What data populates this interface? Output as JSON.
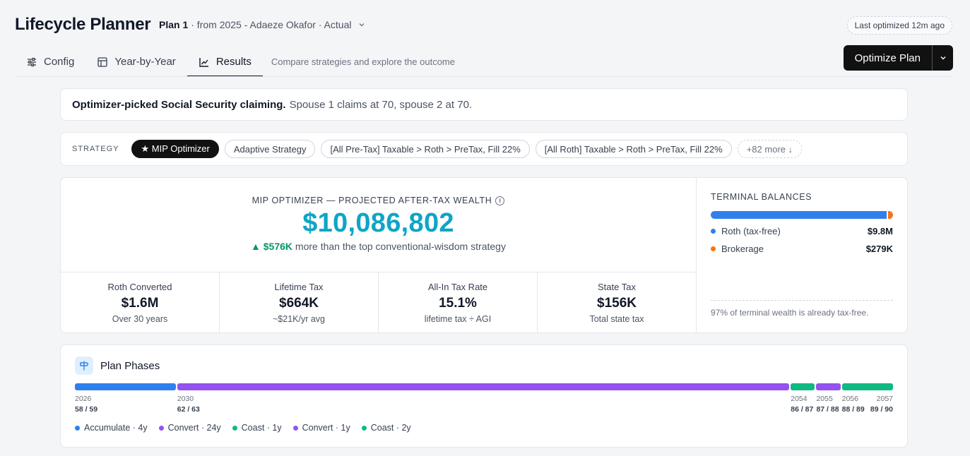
{
  "header": {
    "app_title": "Lifecycle Planner",
    "plan_name": "Plan 1",
    "plan_detail": "· from 2025 - Adaeze Okafor · Actual",
    "last_optimized": "Last optimized 12m ago"
  },
  "tabs": [
    {
      "label": "Config",
      "icon": "sliders-icon"
    },
    {
      "label": "Year-by-Year",
      "icon": "table-icon"
    },
    {
      "label": "Results",
      "icon": "line-chart-icon",
      "active": true
    }
  ],
  "tab_description": "Compare strategies and explore the outcome",
  "optimize_button": {
    "label": "Optimize Plan"
  },
  "notice": {
    "bold": "Optimizer-picked Social Security claiming.",
    "text": "Spouse 1 claims at 70, spouse 2 at 70."
  },
  "strategy": {
    "label": "STRATEGY",
    "options": [
      "★ MIP Optimizer",
      "Adaptive Strategy",
      "[All Pre-Tax] Taxable > Roth > PreTax, Fill 22%",
      "[All Roth] Taxable > Roth > PreTax, Fill 22%"
    ],
    "more": "+82 more ↓"
  },
  "wealth": {
    "label": "MIP OPTIMIZER — PROJECTED AFTER-TAX WEALTH",
    "value": "$10,086,802",
    "delta_value": "▲ $576K",
    "delta_text": "more than the top conventional-wisdom strategy"
  },
  "stats": [
    {
      "label": "Roth Converted",
      "value": "$1.6M",
      "sub": "Over 30 years"
    },
    {
      "label": "Lifetime Tax",
      "value": "$664K",
      "sub": "~$21K/yr avg"
    },
    {
      "label": "All-In Tax Rate",
      "value": "15.1%",
      "sub": "lifetime tax ÷ AGI"
    },
    {
      "label": "State Tax",
      "value": "$156K",
      "sub": "Total state tax"
    }
  ],
  "terminal": {
    "title": "TERMINAL BALANCES",
    "items": [
      {
        "label": "Roth (tax-free)",
        "value": "$9.8M",
        "share": 0.972,
        "color": "#2f80ed"
      },
      {
        "label": "Brokerage",
        "value": "$279K",
        "share": 0.028,
        "color": "#f97316"
      }
    ],
    "note": "97% of terminal wealth is already tax-free."
  },
  "phases": {
    "title": "Plan Phases",
    "colors": {
      "accumulate": "#2f80ed",
      "convert": "#9452f0",
      "coast": "#10b981"
    },
    "segments": [
      {
        "type": "accumulate",
        "start_year": 2026,
        "years": 4
      },
      {
        "type": "convert",
        "start_year": 2030,
        "years": 24
      },
      {
        "type": "coast",
        "start_year": 2054,
        "years": 1
      },
      {
        "type": "convert",
        "start_year": 2055,
        "years": 1
      },
      {
        "type": "coast",
        "start_year": 2056,
        "years": 2
      }
    ],
    "markers": [
      {
        "year": "2026",
        "ages": "58 / 59"
      },
      {
        "year": "2030",
        "ages": "62 / 63"
      },
      {
        "year": "2054",
        "ages": "86 / 87"
      },
      {
        "year": "2055",
        "ages": "87 / 88"
      },
      {
        "year": "2056",
        "ages": "88 / 89"
      },
      {
        "year": "2057",
        "ages": "89 / 90"
      }
    ],
    "legend": [
      {
        "label": "Accumulate · 4y",
        "type": "accumulate"
      },
      {
        "label": "Convert · 24y",
        "type": "convert"
      },
      {
        "label": "Coast · 1y",
        "type": "coast"
      },
      {
        "label": "Convert · 1y",
        "type": "convert"
      },
      {
        "label": "Coast · 2y",
        "type": "coast"
      }
    ]
  }
}
